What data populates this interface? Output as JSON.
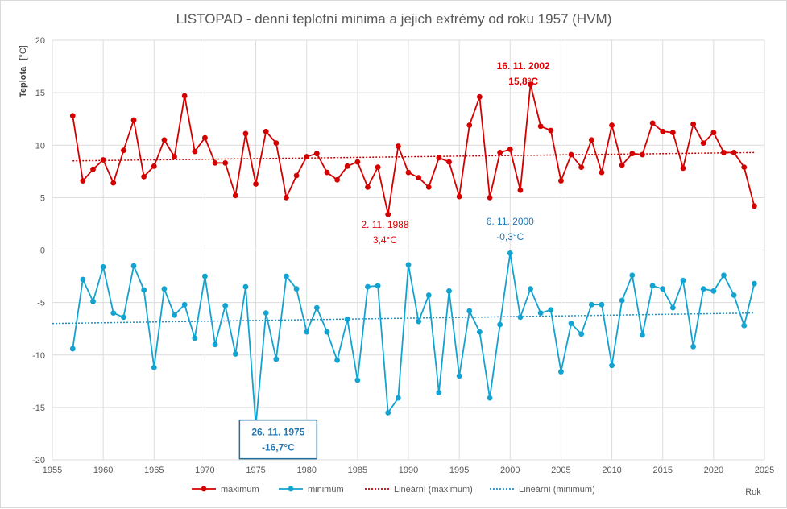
{
  "chart_data": {
    "type": "line",
    "title": "LISTOPAD - denní teplotní minima a jejich extrémy od roku 1957 (HVM)",
    "ylabel": "Teplota",
    "ylabel_unit": "[°C]",
    "xlabel": "Rok",
    "xlim": [
      1955,
      2025
    ],
    "ylim": [
      -20,
      20
    ],
    "x_ticks": [
      "1955",
      "1960",
      "1965",
      "1970",
      "1975",
      "1980",
      "1985",
      "1990",
      "1995",
      "2000",
      "2005",
      "2010",
      "2015",
      "2020",
      "2025"
    ],
    "y_ticks": [
      "20",
      "15",
      "10",
      "5",
      "0",
      "-5",
      "-10",
      "-15",
      "-20"
    ],
    "grid": true,
    "legend_position": "bottom",
    "x": [
      1957,
      1958,
      1959,
      1960,
      1961,
      1962,
      1963,
      1964,
      1965,
      1966,
      1967,
      1968,
      1969,
      1970,
      1971,
      1972,
      1973,
      1974,
      1975,
      1976,
      1977,
      1978,
      1979,
      1980,
      1981,
      1982,
      1983,
      1984,
      1985,
      1986,
      1987,
      1988,
      1989,
      1990,
      1991,
      1992,
      1993,
      1994,
      1995,
      1996,
      1997,
      1998,
      1999,
      2000,
      2001,
      2002,
      2003,
      2004,
      2005,
      2006,
      2007,
      2008,
      2009,
      2010,
      2011,
      2012,
      2013,
      2014,
      2015,
      2016,
      2017,
      2018,
      2019,
      2020,
      2021,
      2022,
      2023,
      2024
    ],
    "series": [
      {
        "name": "maximum",
        "color": "#d40000",
        "values": [
          12.8,
          6.6,
          7.7,
          8.6,
          6.4,
          9.5,
          12.4,
          7.0,
          8.0,
          10.5,
          8.9,
          14.7,
          9.4,
          10.7,
          8.3,
          8.3,
          5.2,
          11.1,
          6.3,
          11.3,
          10.2,
          5.0,
          7.1,
          8.9,
          9.2,
          7.4,
          6.7,
          8.0,
          8.4,
          6.0,
          7.9,
          3.4,
          9.9,
          7.4,
          6.9,
          6.0,
          8.8,
          8.4,
          5.1,
          11.9,
          14.6,
          5.0,
          9.3,
          9.6,
          5.7,
          15.8,
          11.8,
          11.4,
          6.6,
          9.1,
          7.9,
          10.5,
          7.4,
          11.9,
          8.1,
          9.2,
          9.1,
          12.1,
          11.3,
          11.2,
          7.8,
          12.0,
          10.2,
          11.2,
          9.3,
          9.3,
          7.9,
          4.2
        ]
      },
      {
        "name": "minimum",
        "color": "#13a3d0",
        "values": [
          -9.4,
          -2.8,
          -4.9,
          -1.6,
          -6.0,
          -6.4,
          -1.5,
          -3.8,
          -11.2,
          -3.7,
          -6.2,
          -5.2,
          -8.4,
          -2.5,
          -9.0,
          -5.3,
          -9.9,
          -3.5,
          -16.7,
          -6.0,
          -10.4,
          -2.5,
          -3.7,
          -7.8,
          -5.5,
          -7.8,
          -10.5,
          -6.6,
          -12.4,
          -3.5,
          -3.4,
          -15.5,
          -14.1,
          -1.4,
          -6.8,
          -4.3,
          -13.6,
          -3.9,
          -12.0,
          -5.8,
          -7.8,
          -14.1,
          -7.1,
          -0.3,
          -6.4,
          -3.7,
          -6.0,
          -5.7,
          -11.6,
          -7.0,
          -8.0,
          -5.2,
          -5.2,
          -11.0,
          -4.8,
          -2.4,
          -8.1,
          -3.4,
          -3.7,
          -5.5,
          -2.9,
          -9.2,
          -3.7,
          -3.9,
          -2.4,
          -4.3,
          -7.2,
          -3.2
        ]
      }
    ],
    "trends": [
      {
        "name": "Lineární (maximum)",
        "color": "#c00000",
        "x": [
          1957,
          2024
        ],
        "y": [
          8.5,
          9.3
        ]
      },
      {
        "name": "Lineární (minimum)",
        "color": "#1f8fc4",
        "x": [
          1955,
          2024
        ],
        "y": [
          -7.0,
          -6.0
        ]
      }
    ],
    "annotations": [
      {
        "line1": "16. 11. 2002",
        "line2": "15,8°C",
        "x": 2001.3,
        "y": 17.0,
        "style": "red-bold"
      },
      {
        "line1": "2. 11. 1988",
        "line2": "3,4°C",
        "x": 1987.7,
        "y": 1.9,
        "style": "red"
      },
      {
        "line1": "6. 11. 2000",
        "line2": "-0,3°C",
        "x": 2000.0,
        "y": 2.2,
        "style": "blue"
      },
      {
        "line1": "26. 11. 1975",
        "line2": "-16,7°C",
        "x": 1977.2,
        "y": -17.9,
        "style": "blue-box"
      }
    ]
  }
}
